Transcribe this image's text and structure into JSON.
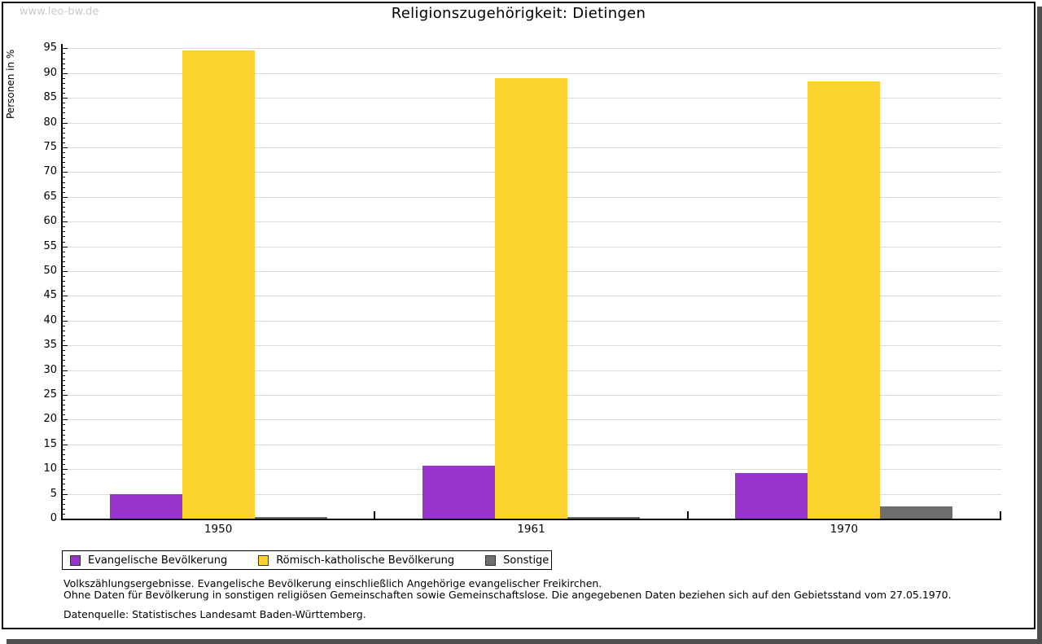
{
  "watermark": "www.leo-bw.de",
  "title": "Religionszugehörigkeit: Dietingen",
  "chart_data": {
    "type": "bar",
    "title": "Religionszugehörigkeit: Dietingen",
    "ylabel": "Personen in %",
    "xlabel": "",
    "ylim": [
      0,
      95
    ],
    "ytick_step": 5,
    "grid": true,
    "legend_position": "bottom-left",
    "categories": [
      "1950",
      "1961",
      "1970"
    ],
    "series": [
      {
        "name": "Evangelische Bevölkerung",
        "color": "#9933cc",
        "values": [
          5.0,
          10.7,
          9.2
        ]
      },
      {
        "name": "Römisch-katholische Bevölkerung",
        "color": "#fcd32e",
        "values": [
          94.6,
          88.9,
          88.4
        ]
      },
      {
        "name": "Sonstige",
        "color": "#6e6e6e",
        "values": [
          0.4,
          0.3,
          2.5
        ]
      }
    ]
  },
  "footnotes": {
    "line1": "Volkszählungsergebnisse. Evangelische Bevölkerung einschließlich Angehörige evangelischer Freikirchen.",
    "line2": "Ohne Daten für Bevölkerung in sonstigen religiösen Gemeinschaften sowie Gemeinschaftslose. Die angegebenen Daten beziehen sich auf den Gebietsstand vom 27.05.1970.",
    "source": "Datenquelle: Statistisches Landesamt Baden-Württemberg."
  },
  "colors": {
    "axis": "#000000",
    "gridline": "#dcdcdc",
    "watermark": "#c9c9c9",
    "frame_shadow": "#4f4f4f",
    "legend_swatch_border": "#333333"
  }
}
